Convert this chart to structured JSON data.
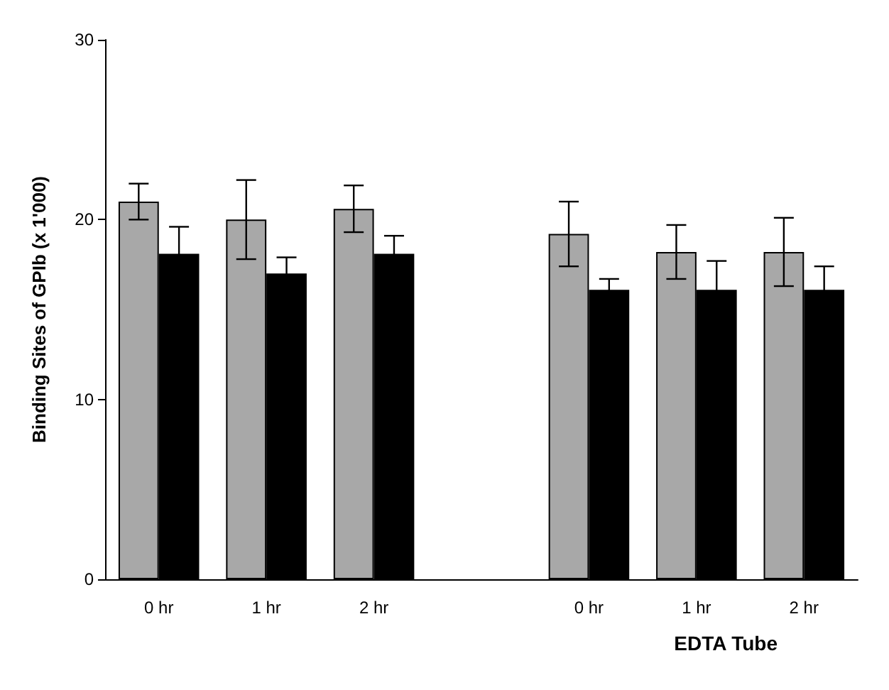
{
  "chart_data": {
    "type": "bar",
    "ylabel": "Binding Sites of GPIb (x 1'000)",
    "categories": [
      "0 hr",
      "1 hr",
      "2 hr",
      null,
      "0 hr",
      "1 hr",
      "2 hr"
    ],
    "series": [
      {
        "color": "#a8a8a8",
        "values": [
          21.0,
          20.0,
          20.6,
          null,
          19.2,
          18.2,
          18.2
        ],
        "errors": [
          1.0,
          2.2,
          1.3,
          null,
          1.8,
          1.5,
          1.9
        ]
      },
      {
        "color": "#000000",
        "values": [
          18.1,
          17.0,
          18.1,
          null,
          16.1,
          16.1,
          16.1
        ],
        "errors": [
          1.5,
          0.9,
          1.0,
          null,
          0.6,
          1.6,
          1.3
        ]
      }
    ],
    "ylim": [
      0,
      30
    ],
    "yticks": [
      0,
      10,
      20,
      30
    ],
    "grid": false,
    "annotations": [
      "EDTA Tube"
    ]
  }
}
